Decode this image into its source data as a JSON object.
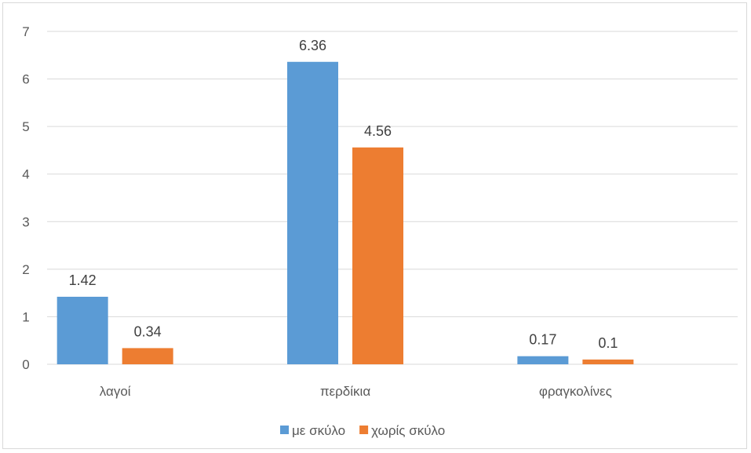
{
  "chart_data": {
    "type": "bar",
    "categories": [
      "λαγοί",
      "περδίκια",
      "φραγκολίνες"
    ],
    "series": [
      {
        "name": "με σκύλο",
        "values": [
          1.42,
          6.36,
          0.17
        ],
        "color": "#5b9bd5"
      },
      {
        "name": "χωρίς σκύλο",
        "values": [
          0.34,
          4.56,
          0.1
        ],
        "color": "#ed7d31"
      }
    ],
    "data_labels": [
      [
        "1.42",
        "6.36",
        "0.17"
      ],
      [
        "0.34",
        "4.56",
        "0.1"
      ]
    ],
    "y_ticks": [
      "0",
      "1",
      "2",
      "3",
      "4",
      "5",
      "6",
      "7"
    ],
    "ylim": [
      0,
      7
    ],
    "grid": true,
    "legend_position": "bottom",
    "title": "",
    "xlabel": "",
    "ylabel": "",
    "colors": {
      "gridline": "#d9d9d9",
      "text": "#595959",
      "data_label": "#404040"
    }
  }
}
